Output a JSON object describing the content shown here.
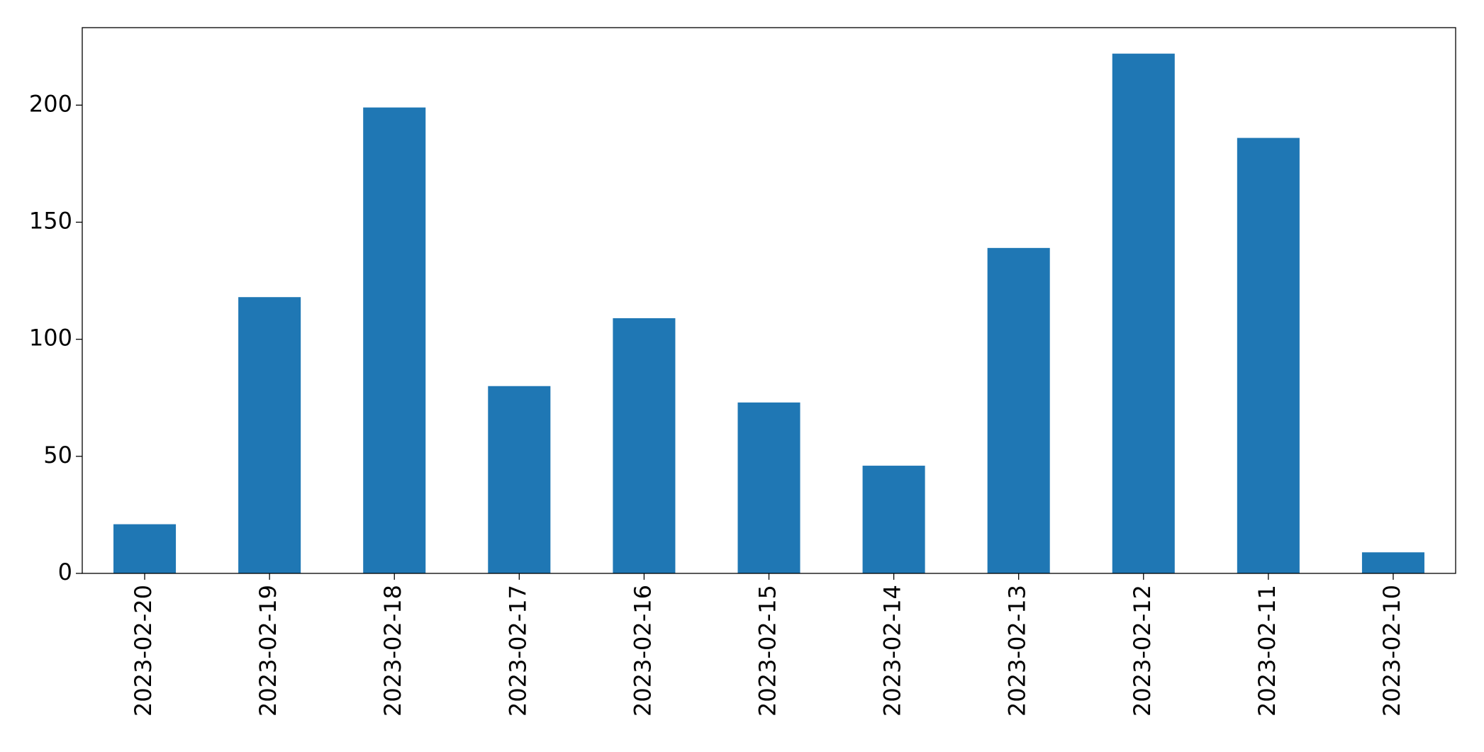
{
  "chart_data": {
    "type": "bar",
    "categories": [
      "2023-02-20",
      "2023-02-19",
      "2023-02-18",
      "2023-02-17",
      "2023-02-16",
      "2023-02-15",
      "2023-02-14",
      "2023-02-13",
      "2023-02-12",
      "2023-02-11",
      "2023-02-10"
    ],
    "values": [
      21,
      118,
      199,
      80,
      109,
      73,
      46,
      139,
      222,
      186,
      9
    ],
    "color": "#1f77b4",
    "ylim": [
      0,
      233.1
    ],
    "yticks": [
      0,
      50,
      100,
      150,
      200
    ],
    "grid": false
  }
}
